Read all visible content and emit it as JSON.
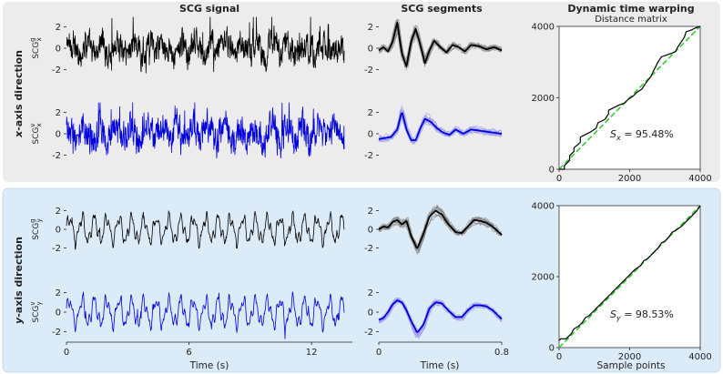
{
  "colors": {
    "panel_top": "#ececec",
    "panel_bottom": "#dcebf8",
    "panel_bottom_border": "#c8daea",
    "signal_black": "#000000",
    "signal_blue": "#0000dd",
    "segment_gray": "#8a8a8a",
    "segment_lightblue": "#9a9af0",
    "diagonal_green": "#33cc33",
    "axes_bg": "#ffffff"
  },
  "headers": {
    "signal": "SCG signal",
    "segments": "SCG segments",
    "dtw": "Dynamic time warping",
    "dtw_sub": "Distance matrix"
  },
  "rows": [
    {
      "label_axis": "x",
      "label_rest": "-axis direction",
      "ylabel_top": {
        "base": "SCG",
        "sup": "g",
        "sub": "x"
      },
      "ylabel_bottom": {
        "base": "SCG",
        "sup": "v",
        "sub": "x"
      },
      "similarity": {
        "base": "S",
        "sub": "x",
        "value": " = 95.48%"
      }
    },
    {
      "label_axis": "y",
      "label_rest": "-axis direction",
      "ylabel_top": {
        "base": "SCG",
        "sup": "g",
        "sub": "y"
      },
      "ylabel_bottom": {
        "base": "SCG",
        "sup": "v",
        "sub": "y"
      },
      "similarity": {
        "base": "S",
        "sub": "y",
        "value": " = 98.53%"
      }
    }
  ],
  "xlabels": {
    "signal": "Time (s)",
    "segments": "Time (s)",
    "dtw": "Sample points"
  },
  "chart_data": [
    {
      "type": "line",
      "name": "signal",
      "x_range": [
        0,
        14
      ],
      "y_range": [
        -3,
        3
      ],
      "xticks": [
        "0",
        "6",
        "12"
      ],
      "xtick_values": [
        0,
        6,
        12
      ],
      "yticks": [
        "2",
        "0",
        "-2"
      ],
      "ytick_values": [
        2,
        0,
        -2
      ]
    },
    {
      "type": "line",
      "name": "segments",
      "x_range": [
        0,
        0.8
      ],
      "y_range": [
        -3,
        3
      ],
      "xticks": [
        "0",
        "0.8"
      ],
      "xtick_values": [
        0,
        0.8
      ],
      "yticks": [
        "2",
        "0",
        "-2"
      ],
      "ytick_values": [
        2,
        0,
        -2
      ],
      "mean_template_x": {
        "segment_top_row_x": [
          [
            0,
            -0.2
          ],
          [
            0.03,
            0.1
          ],
          [
            0.06,
            -0.3
          ],
          [
            0.09,
            0.6
          ],
          [
            0.12,
            2.4
          ],
          [
            0.15,
            -0.5
          ],
          [
            0.18,
            -1.7
          ],
          [
            0.21,
            0.6
          ],
          [
            0.24,
            1.8
          ],
          [
            0.27,
            0.3
          ],
          [
            0.3,
            -1.4
          ],
          [
            0.33,
            -0.2
          ],
          [
            0.36,
            0.7
          ],
          [
            0.4,
            0.1
          ],
          [
            0.44,
            -0.4
          ],
          [
            0.48,
            0.3
          ],
          [
            0.52,
            0.1
          ],
          [
            0.56,
            -0.3
          ],
          [
            0.6,
            0.3
          ],
          [
            0.65,
            0.2
          ],
          [
            0.7,
            -0.1
          ],
          [
            0.75,
            0.1
          ],
          [
            0.8,
            -0.2
          ]
        ],
        "segment_bottom_row_x": [
          [
            0,
            -0.5
          ],
          [
            0.04,
            -0.4
          ],
          [
            0.08,
            -0.3
          ],
          [
            0.12,
            0.4
          ],
          [
            0.15,
            2.1
          ],
          [
            0.18,
            0.4
          ],
          [
            0.21,
            -0.6
          ],
          [
            0.24,
            -0.6
          ],
          [
            0.27,
            0.5
          ],
          [
            0.3,
            1.4
          ],
          [
            0.34,
            1.1
          ],
          [
            0.38,
            0.5
          ],
          [
            0.42,
            0.1
          ],
          [
            0.46,
            -0.1
          ],
          [
            0.5,
            0.4
          ],
          [
            0.55,
            0.0
          ],
          [
            0.6,
            0.4
          ],
          [
            0.65,
            0.3
          ],
          [
            0.7,
            0.2
          ],
          [
            0.75,
            0.1
          ],
          [
            0.8,
            0.0
          ]
        ]
      },
      "mean_template_y": {
        "segment_top_row_y": [
          [
            0,
            0.0
          ],
          [
            0.03,
            0.3
          ],
          [
            0.06,
            0.2
          ],
          [
            0.09,
            0.8
          ],
          [
            0.12,
            1.0
          ],
          [
            0.15,
            0.5
          ],
          [
            0.18,
            0.9
          ],
          [
            0.21,
            -0.7
          ],
          [
            0.25,
            -2.1
          ],
          [
            0.29,
            -0.5
          ],
          [
            0.33,
            1.4
          ],
          [
            0.37,
            2.0
          ],
          [
            0.41,
            1.6
          ],
          [
            0.45,
            0.6
          ],
          [
            0.5,
            -0.3
          ],
          [
            0.54,
            -0.4
          ],
          [
            0.58,
            0.3
          ],
          [
            0.62,
            1.0
          ],
          [
            0.66,
            0.9
          ],
          [
            0.7,
            0.7
          ],
          [
            0.74,
            0.3
          ],
          [
            0.8,
            -0.6
          ]
        ],
        "segment_bottom_row_y": [
          [
            0,
            -0.8
          ],
          [
            0.03,
            -0.6
          ],
          [
            0.06,
            0.0
          ],
          [
            0.09,
            0.8
          ],
          [
            0.12,
            1.2
          ],
          [
            0.15,
            1.0
          ],
          [
            0.18,
            0.2
          ],
          [
            0.21,
            -0.9
          ],
          [
            0.25,
            -2.1
          ],
          [
            0.29,
            -1.3
          ],
          [
            0.33,
            0.4
          ],
          [
            0.37,
            1.0
          ],
          [
            0.41,
            0.9
          ],
          [
            0.45,
            0.2
          ],
          [
            0.5,
            -0.5
          ],
          [
            0.54,
            -0.5
          ],
          [
            0.58,
            0.2
          ],
          [
            0.62,
            0.7
          ],
          [
            0.66,
            0.7
          ],
          [
            0.7,
            0.6
          ],
          [
            0.74,
            0.2
          ],
          [
            0.8,
            -0.7
          ]
        ]
      }
    },
    {
      "type": "line",
      "name": "dtw_distance_matrix",
      "x_range": [
        0,
        4000
      ],
      "y_range": [
        0,
        4000
      ],
      "xticks": [
        "0",
        "2000",
        "4000"
      ],
      "xtick_values": [
        0,
        2000,
        4000
      ],
      "yticks": [
        "4000",
        "2000",
        "0"
      ],
      "ytick_values": [
        4000,
        2000,
        0
      ],
      "diagonal": [
        [
          0,
          0
        ],
        [
          4000,
          4000
        ]
      ],
      "path_x": [
        [
          0,
          0
        ],
        [
          150,
          0
        ],
        [
          150,
          100
        ],
        [
          300,
          250
        ],
        [
          300,
          380
        ],
        [
          420,
          500
        ],
        [
          420,
          600
        ],
        [
          600,
          750
        ],
        [
          600,
          900
        ],
        [
          800,
          1000
        ],
        [
          900,
          1050
        ],
        [
          1050,
          1150
        ],
        [
          1100,
          1300
        ],
        [
          1300,
          1400
        ],
        [
          1400,
          1550
        ],
        [
          1400,
          1650
        ],
        [
          1500,
          1700
        ],
        [
          1600,
          1750
        ],
        [
          1700,
          1800
        ],
        [
          1850,
          1850
        ],
        [
          1950,
          1950
        ],
        [
          2100,
          2050
        ],
        [
          2200,
          2150
        ],
        [
          2350,
          2250
        ],
        [
          2450,
          2400
        ],
        [
          2600,
          2600
        ],
        [
          2650,
          2700
        ],
        [
          2700,
          2800
        ],
        [
          2800,
          3000
        ],
        [
          2900,
          3150
        ],
        [
          3050,
          3200
        ],
        [
          3200,
          3250
        ],
        [
          3300,
          3300
        ],
        [
          3350,
          3400
        ],
        [
          3450,
          3550
        ],
        [
          3550,
          3700
        ],
        [
          3600,
          3850
        ],
        [
          3750,
          3900
        ],
        [
          3850,
          3950
        ],
        [
          4000,
          4000
        ]
      ],
      "path_y": [
        [
          0,
          200
        ],
        [
          50,
          250
        ],
        [
          200,
          250
        ],
        [
          250,
          300
        ],
        [
          350,
          400
        ],
        [
          400,
          500
        ],
        [
          450,
          550
        ],
        [
          550,
          600
        ],
        [
          650,
          700
        ],
        [
          750,
          850
        ],
        [
          850,
          900
        ],
        [
          950,
          1000
        ],
        [
          1050,
          1100
        ],
        [
          1150,
          1200
        ],
        [
          1250,
          1300
        ],
        [
          1350,
          1400
        ],
        [
          1450,
          1500
        ],
        [
          1550,
          1600
        ],
        [
          1650,
          1700
        ],
        [
          1750,
          1800
        ],
        [
          1850,
          1900
        ],
        [
          1950,
          2000
        ],
        [
          2050,
          2100
        ],
        [
          2150,
          2200
        ],
        [
          2300,
          2300
        ],
        [
          2400,
          2450
        ],
        [
          2500,
          2500
        ],
        [
          2600,
          2600
        ],
        [
          2700,
          2700
        ],
        [
          2800,
          2800
        ],
        [
          2900,
          2950
        ],
        [
          3000,
          3000
        ],
        [
          3100,
          3100
        ],
        [
          3200,
          3250
        ],
        [
          3300,
          3300
        ],
        [
          3450,
          3400
        ],
        [
          3550,
          3500
        ],
        [
          3600,
          3550
        ],
        [
          3700,
          3650
        ],
        [
          3800,
          3750
        ],
        [
          3900,
          3850
        ],
        [
          4000,
          4000
        ]
      ]
    }
  ]
}
